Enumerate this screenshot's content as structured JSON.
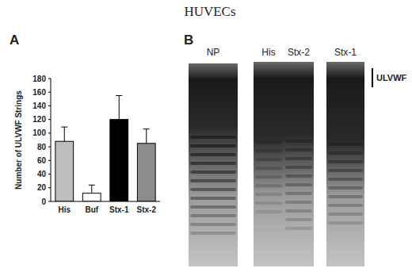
{
  "figure_title": "HUVECs",
  "panel_labels": [
    "A",
    "B"
  ],
  "chart_data": {
    "type": "bar",
    "y_label": "Number of ULVWF Strings",
    "categories": [
      "His",
      "Buf",
      "Stx-1",
      "Stx-2"
    ],
    "values": [
      88,
      12,
      120,
      85
    ],
    "errors": [
      21,
      12,
      35,
      21
    ],
    "colors": [
      "#bdbdbd",
      "#ffffff",
      "#000000",
      "#8c8c8c"
    ],
    "ylim": [
      0,
      180
    ],
    "yticks": [
      0,
      20,
      40,
      60,
      80,
      100,
      120,
      140,
      160,
      180
    ],
    "grid": false
  },
  "gel": {
    "lanes": [
      "NP",
      "His",
      "Stx-2",
      "Stx-1"
    ],
    "band_label": "ULVWF"
  }
}
